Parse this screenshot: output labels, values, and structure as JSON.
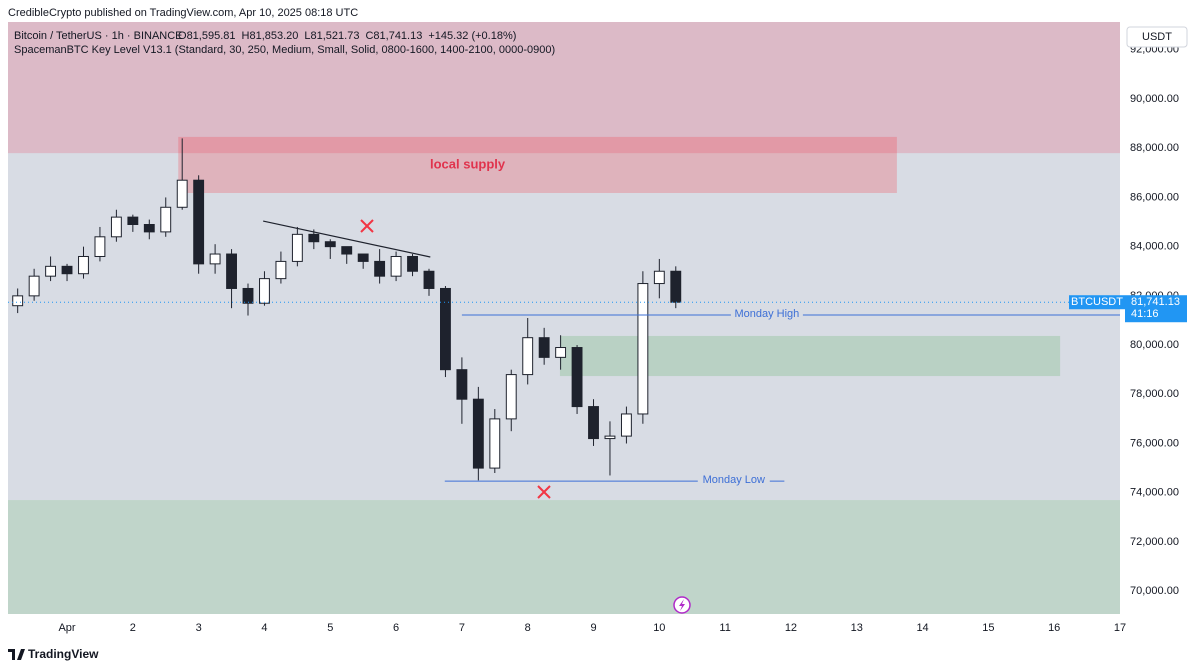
{
  "header": {
    "published": "CredibleCrypto published on TradingView.com, Apr 10, 2025 08:18 UTC",
    "symbol": "Bitcoin / TetherUS · 1h · BINANCE",
    "ohlc": [
      {
        "label": "O",
        "value": "81,595.81"
      },
      {
        "label": "H",
        "value": "81,853.20"
      },
      {
        "label": "L",
        "value": "81,521.73"
      },
      {
        "label": "C",
        "value": "81,741.13"
      }
    ],
    "change": "+145.32 (+0.18%)",
    "indicator": "SpacemanBTC Key Level V13.1 (Standard, 30, 250, Medium, Small, Solid, 0800-1600, 1400-2100, 0000-0900)",
    "currency": "USDT"
  },
  "chart_data": {
    "type": "candlestick",
    "x": [
      0.25,
      0.5,
      0.75,
      1,
      1.25,
      1.5,
      1.75,
      2,
      2.25,
      2.5,
      2.75,
      3,
      3.25,
      3.5,
      3.75,
      4,
      4.25,
      4.5,
      4.75,
      5,
      5.25,
      5.5,
      5.75,
      6,
      6.25,
      6.5,
      6.75,
      7,
      7.25,
      7.5,
      7.75,
      8,
      8.25,
      8.5,
      8.75,
      9,
      9.25,
      9.5,
      9.75,
      10,
      10.25
    ],
    "open": [
      81600,
      82000,
      82800,
      83200,
      82900,
      83600,
      84400,
      85200,
      84900,
      84600,
      85600,
      86700,
      83300,
      83700,
      82300,
      81700,
      82700,
      83400,
      84500,
      84200,
      84000,
      83700,
      83400,
      82800,
      83600,
      83000,
      82300,
      79000,
      77800,
      75000,
      77000,
      78800,
      80300,
      79500,
      79900,
      77500,
      76200,
      76300,
      77200,
      82500,
      83000
    ],
    "high": [
      82300,
      83100,
      83600,
      83300,
      84000,
      84800,
      85500,
      85300,
      85100,
      86000,
      88400,
      86900,
      84100,
      83900,
      82500,
      83000,
      83800,
      84800,
      84700,
      84300,
      84000,
      83700,
      83900,
      83800,
      83700,
      83100,
      82400,
      79500,
      78300,
      77400,
      79000,
      81100,
      80700,
      80400,
      80000,
      77800,
      76900,
      77500,
      83000,
      83500,
      83200
    ],
    "low": [
      81300,
      81800,
      82600,
      82600,
      82700,
      83400,
      84200,
      84600,
      84300,
      84400,
      85500,
      82900,
      82900,
      81500,
      81200,
      81600,
      82500,
      83200,
      83900,
      83500,
      83300,
      83100,
      82500,
      82600,
      82800,
      82000,
      78700,
      76800,
      74500,
      74800,
      76500,
      78400,
      79200,
      79000,
      77200,
      75900,
      74700,
      76000,
      76800,
      81900,
      81500
    ],
    "close": [
      82000,
      82800,
      83200,
      82900,
      83600,
      84400,
      85200,
      84900,
      84600,
      85600,
      86700,
      83300,
      83700,
      82300,
      81700,
      82700,
      83400,
      84500,
      84200,
      84000,
      83700,
      83400,
      82800,
      83600,
      83000,
      82300,
      79000,
      77800,
      75000,
      77000,
      78800,
      80300,
      79500,
      79900,
      77500,
      76200,
      76300,
      77200,
      82500,
      83000,
      81741.13
    ],
    "up_color": "#ffffff",
    "down_color": "#1e222d",
    "xlim": [
      0.103,
      17.0
    ],
    "xticks": [
      {
        "value": 1,
        "label": "Apr"
      },
      2,
      3,
      4,
      5,
      6,
      7,
      8,
      9,
      10,
      11,
      12,
      13,
      14,
      15,
      16,
      17
    ],
    "ylim": [
      69070,
      93130
    ],
    "yticks": [
      {
        "value": 70000,
        "label": "70,000.00"
      },
      {
        "value": 72000,
        "label": "72,000.00"
      },
      {
        "value": 74000,
        "label": "74,000.00"
      },
      {
        "value": 76000,
        "label": "76,000.00"
      },
      {
        "value": 78000,
        "label": "78,000.00"
      },
      {
        "value": 80000,
        "label": "80,000.00"
      },
      {
        "value": 82000,
        "label": "82,000.00"
      },
      {
        "value": 84000,
        "label": "84,000.00"
      },
      {
        "value": 86000,
        "label": "86,000.00"
      },
      {
        "value": 88000,
        "label": "88,000.00"
      },
      {
        "value": 90000,
        "label": "90,000.00"
      },
      {
        "value": 92000,
        "label": "92,000.00"
      }
    ],
    "zones": [
      {
        "xlim": [
          0.103,
          17.0
        ],
        "ylim": [
          87800,
          93130
        ],
        "color": "rgba(236,70,95,0.22)"
      },
      {
        "label": "local supply",
        "xlim": [
          2.69,
          13.61
        ],
        "ylim": [
          86180,
          88460
        ],
        "color": "rgba(242,54,69,0.25)",
        "label_color": "#e0334d"
      },
      {
        "xlim": [
          8.49,
          16.09
        ],
        "ylim": [
          78740,
          80370
        ],
        "color": "rgba(76,175,80,0.22)"
      },
      {
        "xlim": [
          0.103,
          17.0
        ],
        "ylim": [
          69070,
          73700
        ],
        "color": "rgba(76,175,80,0.17)"
      }
    ],
    "levels": [
      {
        "label": "Monday High",
        "price": 81220,
        "xlim": [
          7.0,
          17.0
        ],
        "color": "#3d6fd6"
      },
      {
        "label": "Monday Low",
        "price": 74470,
        "xlim": [
          6.74,
          11.9
        ],
        "color": "#3d6fd6"
      }
    ],
    "trendline": {
      "x": [
        3.98,
        6.52
      ],
      "y": [
        85040,
        83580
      ],
      "color": "#1e222d"
    },
    "last_price": {
      "symbol": "BTCUSDT",
      "value": 81741.13,
      "label": "81,741.13",
      "countdown": "41:16",
      "color": "#2196f3"
    }
  },
  "footer": {
    "brand": "TradingView"
  }
}
